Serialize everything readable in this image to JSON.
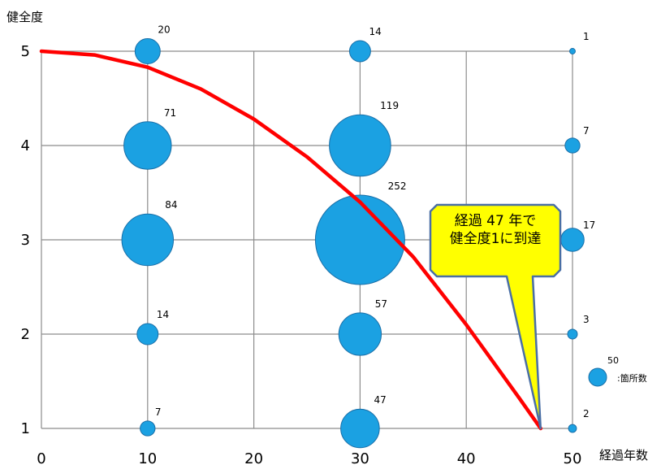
{
  "chart_data": {
    "type": "scatter",
    "title": "",
    "ylabel": "健全度",
    "xlabel": "経過年数",
    "xlim": [
      0,
      50
    ],
    "ylim": [
      1,
      5
    ],
    "x_ticks": [
      0,
      10,
      20,
      30,
      40,
      50
    ],
    "y_ticks": [
      1,
      2,
      3,
      4,
      5
    ],
    "grid": true,
    "bubble_color": "#1BA1E2",
    "curve_color": "#FF0000",
    "bubbles": [
      {
        "x": 10,
        "y": 5,
        "count": 20
      },
      {
        "x": 10,
        "y": 4,
        "count": 71
      },
      {
        "x": 10,
        "y": 3,
        "count": 84
      },
      {
        "x": 10,
        "y": 2,
        "count": 14
      },
      {
        "x": 10,
        "y": 1,
        "count": 7
      },
      {
        "x": 30,
        "y": 5,
        "count": 14
      },
      {
        "x": 30,
        "y": 4,
        "count": 119
      },
      {
        "x": 30,
        "y": 3,
        "count": 252
      },
      {
        "x": 30,
        "y": 2,
        "count": 57
      },
      {
        "x": 30,
        "y": 1,
        "count": 47
      },
      {
        "x": 50,
        "y": 5,
        "count": 1
      },
      {
        "x": 50,
        "y": 4,
        "count": 7
      },
      {
        "x": 50,
        "y": 3,
        "count": 17
      },
      {
        "x": 50,
        "y": 2,
        "count": 3
      },
      {
        "x": 50,
        "y": 1,
        "count": 2
      }
    ],
    "curve": [
      {
        "x": 0,
        "y": 5.0
      },
      {
        "x": 5,
        "y": 4.96
      },
      {
        "x": 10,
        "y": 4.83
      },
      {
        "x": 15,
        "y": 4.6
      },
      {
        "x": 20,
        "y": 4.28
      },
      {
        "x": 25,
        "y": 3.88
      },
      {
        "x": 30,
        "y": 3.4
      },
      {
        "x": 35,
        "y": 2.82
      },
      {
        "x": 40,
        "y": 2.1
      },
      {
        "x": 45,
        "y": 1.32
      },
      {
        "x": 47,
        "y": 1.0
      }
    ],
    "legend": {
      "value": "50",
      "label": ":箇所数"
    },
    "annotation": {
      "lines": [
        "経過 47 年で",
        "健全度1に到達"
      ],
      "target": {
        "x": 47,
        "y": 1
      },
      "fill": "#FFFF00",
      "border": "#4A6FA5"
    }
  }
}
